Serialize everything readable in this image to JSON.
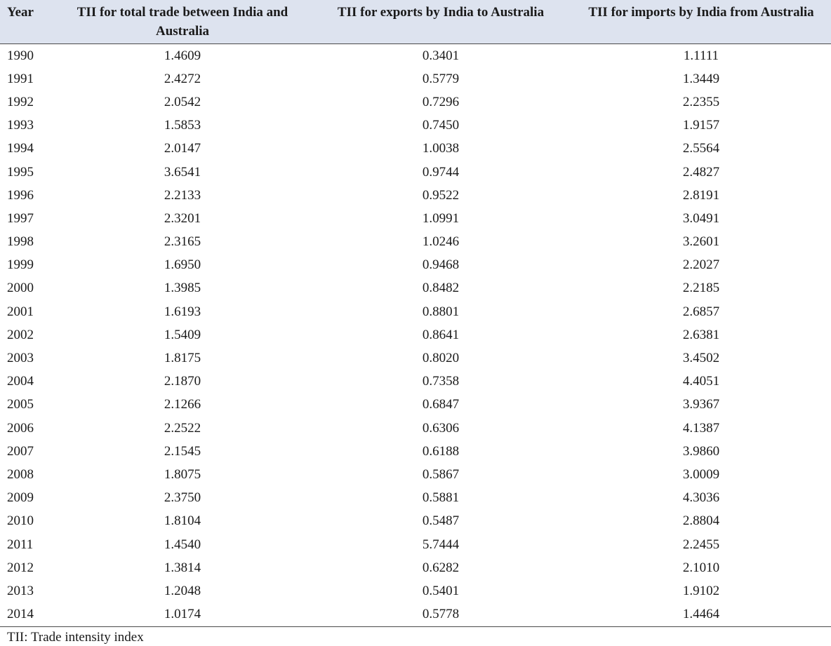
{
  "table": {
    "headers": {
      "year": "Year",
      "total": "TII for total trade between India and Australia",
      "exports": "TII for exports by India to Australia",
      "imports": "TII for imports by India from Australia"
    },
    "rows": [
      [
        "1990",
        "1.4609",
        "0.3401",
        "1.1111"
      ],
      [
        "1991",
        "2.4272",
        "0.5779",
        "1.3449"
      ],
      [
        "1992",
        "2.0542",
        "0.7296",
        "2.2355"
      ],
      [
        "1993",
        "1.5853",
        "0.7450",
        "1.9157"
      ],
      [
        "1994",
        "2.0147",
        "1.0038",
        "2.5564"
      ],
      [
        "1995",
        "3.6541",
        "0.9744",
        "2.4827"
      ],
      [
        "1996",
        "2.2133",
        "0.9522",
        "2.8191"
      ],
      [
        "1997",
        "2.3201",
        "1.0991",
        "3.0491"
      ],
      [
        "1998",
        "2.3165",
        "1.0246",
        "3.2601"
      ],
      [
        "1999",
        "1.6950",
        "0.9468",
        "2.2027"
      ],
      [
        "2000",
        "1.3985",
        "0.8482",
        "2.2185"
      ],
      [
        "2001",
        "1.6193",
        "0.8801",
        "2.6857"
      ],
      [
        "2002",
        "1.5409",
        "0.8641",
        "2.6381"
      ],
      [
        "2003",
        "1.8175",
        "0.8020",
        "3.4502"
      ],
      [
        "2004",
        "2.1870",
        "0.7358",
        "4.4051"
      ],
      [
        "2005",
        "2.1266",
        "0.6847",
        "3.9367"
      ],
      [
        "2006",
        "2.2522",
        "0.6306",
        "4.1387"
      ],
      [
        "2007",
        "2.1545",
        "0.6188",
        "3.9860"
      ],
      [
        "2008",
        "1.8075",
        "0.5867",
        "3.0009"
      ],
      [
        "2009",
        "2.3750",
        "0.5881",
        "4.3036"
      ],
      [
        "2010",
        "1.8104",
        "0.5487",
        "2.8804"
      ],
      [
        "2011",
        "1.4540",
        "5.7444",
        "2.2455"
      ],
      [
        "2012",
        "1.3814",
        "0.6282",
        "2.1010"
      ],
      [
        "2013",
        "1.2048",
        "0.5401",
        "1.9102"
      ],
      [
        "2014",
        "1.0174",
        "0.5778",
        "1.4464"
      ]
    ]
  },
  "footnote": "TII: Trade intensity index"
}
